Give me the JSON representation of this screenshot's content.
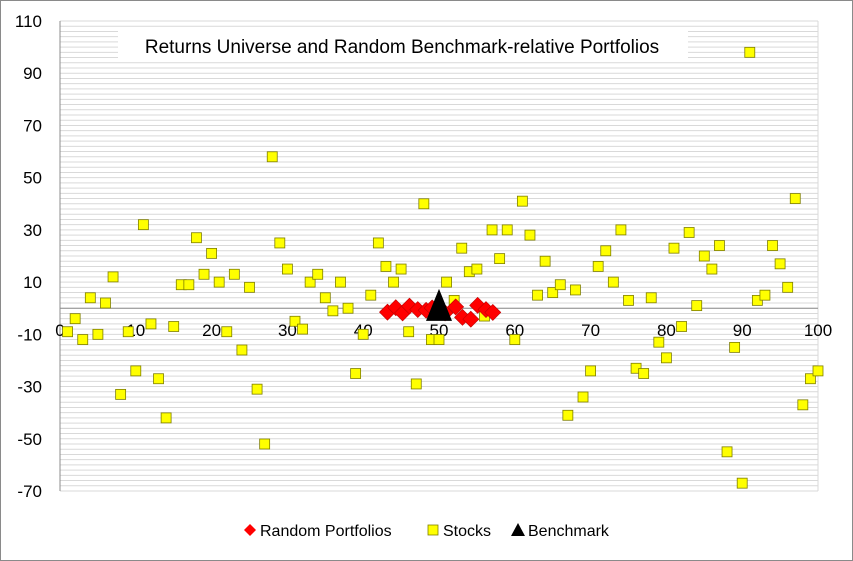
{
  "chart_data": {
    "type": "scatter",
    "title": "Returns Universe and Random Benchmark-relative Portfolios",
    "xlabel": "",
    "ylabel": "",
    "xlim": [
      0,
      100
    ],
    "ylim": [
      -70,
      110
    ],
    "x_ticks": [
      0,
      10,
      20,
      30,
      40,
      50,
      60,
      70,
      80,
      90,
      100
    ],
    "y_ticks": [
      110,
      90,
      70,
      50,
      30,
      10,
      -10,
      -30,
      -50,
      -70
    ],
    "grid": "horizontal minor gridlines every 2 units",
    "legend_position": "bottom",
    "series": [
      {
        "name": "Random Portfolios",
        "marker": "diamond",
        "color": "#ff0000",
        "points": [
          [
            43.2,
            -1.5
          ],
          [
            44.3,
            0.2
          ],
          [
            45.2,
            -1.8
          ],
          [
            46.1,
            0.8
          ],
          [
            47.2,
            -0.5
          ],
          [
            48.3,
            -0.8
          ],
          [
            49.1,
            0.1
          ],
          [
            50.8,
            -1.8
          ],
          [
            52.2,
            0.5
          ],
          [
            53.1,
            -3.5
          ],
          [
            54.2,
            -4.2
          ],
          [
            55.1,
            1.1
          ],
          [
            56.2,
            -0.5
          ],
          [
            57.1,
            -1.6
          ]
        ]
      },
      {
        "name": "Stocks",
        "marker": "square",
        "color": "#ffff00",
        "points": [
          [
            1,
            -9
          ],
          [
            2,
            -4
          ],
          [
            3,
            -12
          ],
          [
            4,
            4
          ],
          [
            5,
            -10
          ],
          [
            6,
            2
          ],
          [
            7,
            12
          ],
          [
            8,
            -33
          ],
          [
            9,
            -9
          ],
          [
            10,
            -24
          ],
          [
            11,
            32
          ],
          [
            12,
            -6
          ],
          [
            13,
            -27
          ],
          [
            14,
            -42
          ],
          [
            15,
            -7
          ],
          [
            16,
            9
          ],
          [
            17,
            9
          ],
          [
            18,
            27
          ],
          [
            19,
            13
          ],
          [
            20,
            21
          ],
          [
            21,
            10
          ],
          [
            22,
            -9
          ],
          [
            23,
            13
          ],
          [
            24,
            -16
          ],
          [
            25,
            8
          ],
          [
            26,
            -31
          ],
          [
            27,
            -52
          ],
          [
            28,
            58
          ],
          [
            29,
            25
          ],
          [
            30,
            15
          ],
          [
            31,
            -5
          ],
          [
            32,
            -8
          ],
          [
            33,
            10
          ],
          [
            34,
            13
          ],
          [
            35,
            4
          ],
          [
            36,
            -1
          ],
          [
            37,
            10
          ],
          [
            38,
            0
          ],
          [
            39,
            -25
          ],
          [
            40,
            -10
          ],
          [
            41,
            5
          ],
          [
            42,
            25
          ],
          [
            43,
            16
          ],
          [
            44,
            10
          ],
          [
            45,
            15
          ],
          [
            46,
            -9
          ],
          [
            47,
            -29
          ],
          [
            48,
            40
          ],
          [
            49,
            -12
          ],
          [
            50,
            -12
          ],
          [
            51,
            10
          ],
          [
            52,
            3
          ],
          [
            53,
            23
          ],
          [
            54,
            14
          ],
          [
            55,
            15
          ],
          [
            56,
            -3
          ],
          [
            57,
            30
          ],
          [
            58,
            19
          ],
          [
            59,
            30
          ],
          [
            60,
            -12
          ],
          [
            61,
            41
          ],
          [
            62,
            28
          ],
          [
            63,
            5
          ],
          [
            64,
            18
          ],
          [
            65,
            6
          ],
          [
            66,
            9
          ],
          [
            67,
            -41
          ],
          [
            68,
            7
          ],
          [
            69,
            -34
          ],
          [
            70,
            -24
          ],
          [
            71,
            16
          ],
          [
            72,
            22
          ],
          [
            73,
            10
          ],
          [
            74,
            30
          ],
          [
            75,
            3
          ],
          [
            76,
            -23
          ],
          [
            77,
            -25
          ],
          [
            78,
            4
          ],
          [
            79,
            -13
          ],
          [
            80,
            -19
          ],
          [
            81,
            23
          ],
          [
            82,
            -7
          ],
          [
            83,
            29
          ],
          [
            84,
            1
          ],
          [
            85,
            20
          ],
          [
            86,
            15
          ],
          [
            87,
            24
          ],
          [
            88,
            -55
          ],
          [
            89,
            -15
          ],
          [
            90,
            -67
          ],
          [
            91,
            98
          ],
          [
            92,
            3
          ],
          [
            93,
            5
          ],
          [
            94,
            24
          ],
          [
            95,
            17
          ],
          [
            96,
            8
          ],
          [
            97,
            42
          ],
          [
            98,
            -37
          ],
          [
            99,
            -27
          ],
          [
            100,
            -24
          ]
        ]
      },
      {
        "name": "Benchmark",
        "marker": "triangle",
        "color": "#000000",
        "points": [
          [
            50,
            -1
          ]
        ]
      }
    ]
  }
}
